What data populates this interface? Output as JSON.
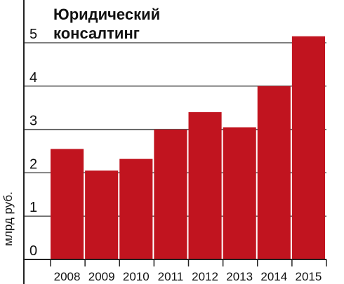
{
  "chart_data": {
    "type": "bar",
    "title_lines": [
      "Юридический",
      "консалтинг"
    ],
    "ylabel": "млрд руб.",
    "xlabel": "",
    "categories": [
      "2008",
      "2009",
      "2010",
      "2011",
      "2012",
      "2013",
      "2014",
      "2015"
    ],
    "values": [
      2.55,
      2.05,
      2.32,
      3.0,
      3.4,
      3.05,
      4.0,
      5.15
    ],
    "yticks": [
      "0",
      "1",
      "2",
      "3",
      "4",
      "5"
    ],
    "ylim": [
      0,
      5.5
    ],
    "grid": true,
    "bar_color": "#c1141f",
    "grid_color": "#555555"
  }
}
